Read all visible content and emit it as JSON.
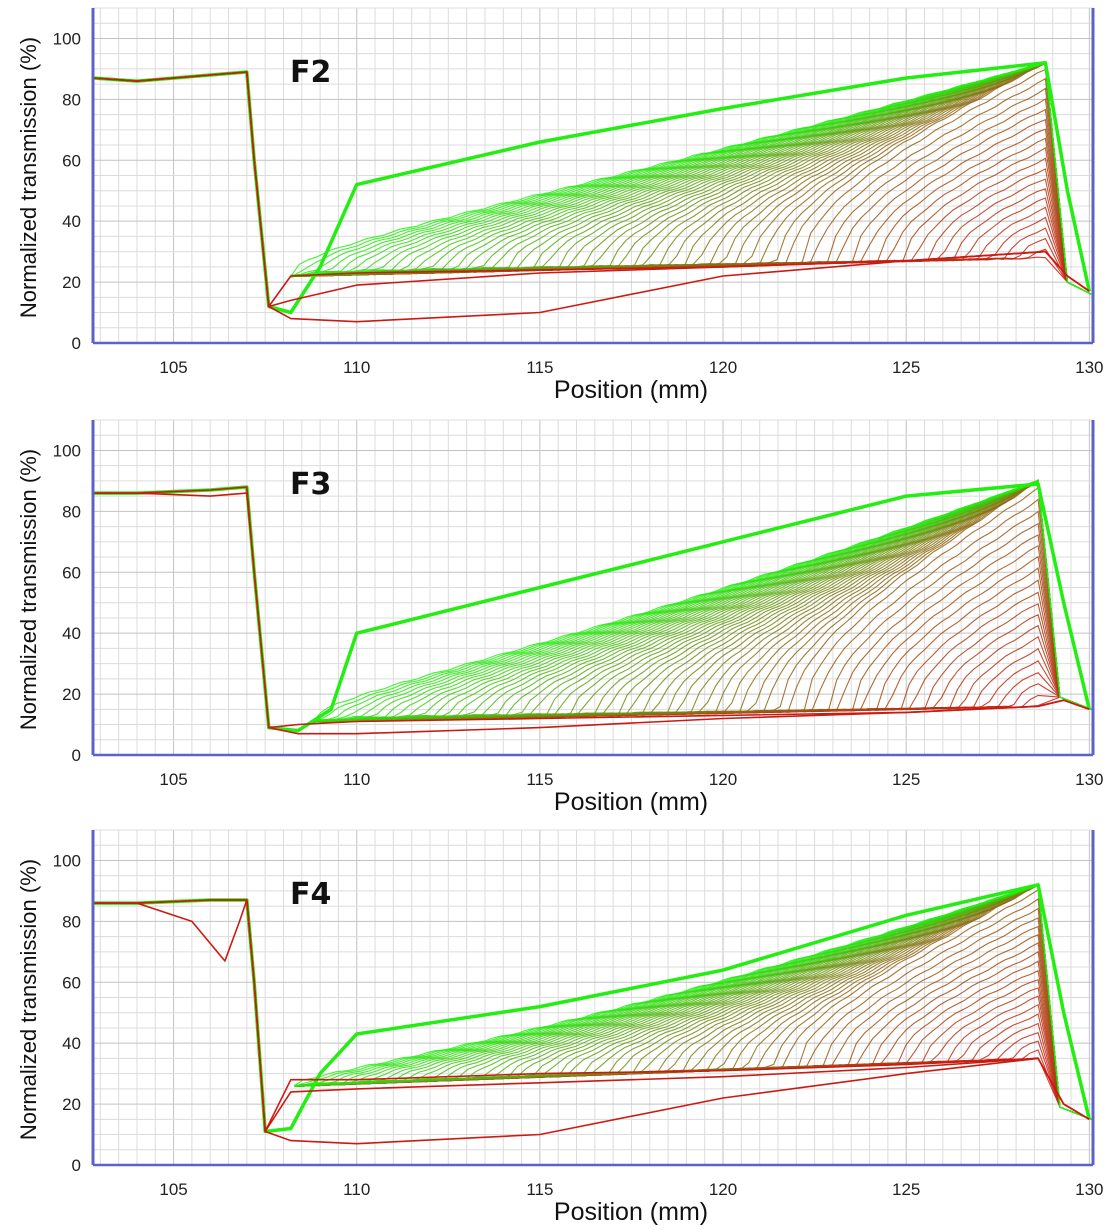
{
  "chart_data": [
    {
      "type": "line",
      "title": "F2",
      "xlabel": "Position (mm)",
      "ylabel": "Normalized transmission (%)",
      "xlim": [
        102.8,
        130.1
      ],
      "ylim": [
        0,
        110
      ],
      "xticks": [
        105,
        110,
        115,
        120,
        125,
        130
      ],
      "yticks": [
        0,
        20,
        40,
        60,
        80,
        100
      ],
      "grid": true,
      "color_gradient": [
        "#cc1a12",
        "#22ee11"
      ],
      "series": [
        {
          "x": [
            102.8,
            104,
            106,
            107.0,
            107.2,
            107.6,
            108.2,
            109,
            110,
            115,
            120,
            125,
            128.8,
            129.4,
            130
          ],
          "values": [
            87,
            86,
            88,
            89,
            60,
            12,
            10,
            25,
            52,
            66,
            77,
            87,
            92,
            50,
            17
          ]
        },
        {
          "x": [
            102.8,
            104,
            106,
            107.0,
            107.2,
            107.6,
            108.2,
            110,
            115,
            120,
            125,
            128.8,
            129.4,
            130
          ],
          "values": [
            87,
            86,
            88,
            89,
            60,
            12,
            22,
            23,
            24,
            25,
            27,
            30,
            22,
            17
          ]
        },
        {
          "x": [
            102.8,
            104,
            106,
            107.0,
            107.2,
            107.6,
            108.2,
            110,
            115,
            120,
            125,
            128.8,
            129.4,
            130
          ],
          "values": [
            87,
            86,
            88,
            89,
            60,
            12,
            14,
            19,
            23,
            25,
            27,
            30,
            22,
            17
          ]
        },
        {
          "x": [
            102.8,
            104,
            106,
            107.0,
            107.2,
            107.6,
            108.2,
            110,
            115,
            120,
            125,
            128.8,
            129.4,
            130
          ],
          "values": [
            87,
            86,
            88,
            89,
            60,
            12,
            8,
            7,
            10,
            22,
            27,
            30,
            22,
            17
          ]
        }
      ],
      "family": {
        "curves": 60,
        "plateau_start": 108.2,
        "plateau_end": 128.8,
        "bottom_left": 22,
        "bottom_right": 28,
        "top_left": 55,
        "top_right": 92,
        "end_level": 16
      }
    },
    {
      "type": "line",
      "title": "F3",
      "xlabel": "Position (mm)",
      "ylabel": "Normalized transmission (%)",
      "xlim": [
        102.8,
        130.1
      ],
      "ylim": [
        0,
        110
      ],
      "xticks": [
        105,
        110,
        115,
        120,
        125,
        130
      ],
      "yticks": [
        0,
        20,
        40,
        60,
        80,
        100
      ],
      "grid": true,
      "color_gradient": [
        "#cc1a12",
        "#22ee11"
      ],
      "series": [
        {
          "x": [
            102.8,
            104,
            106,
            107.0,
            107.2,
            107.6,
            108.4,
            109.3,
            110,
            115,
            120,
            125,
            128.6,
            129.3,
            130
          ],
          "values": [
            86,
            86,
            87,
            88,
            60,
            9,
            8,
            15,
            40,
            55,
            70,
            85,
            89,
            50,
            15
          ]
        },
        {
          "x": [
            102.8,
            104,
            106,
            107.0,
            107.2,
            107.6,
            108.4,
            110,
            115,
            120,
            125,
            128.6,
            129.3,
            130
          ],
          "values": [
            86,
            86,
            87,
            88,
            60,
            9,
            10,
            11,
            12,
            13,
            14,
            16,
            18,
            15
          ]
        },
        {
          "x": [
            102.8,
            104,
            106,
            107.0,
            107.2,
            107.6,
            108.4,
            110,
            115,
            120,
            125,
            128.6,
            129.3,
            130
          ],
          "values": [
            86,
            86,
            85,
            86,
            60,
            9,
            7,
            7,
            9,
            12,
            14,
            16,
            18,
            15
          ]
        }
      ],
      "family": {
        "curves": 60,
        "plateau_start": 108.8,
        "plateau_end": 128.6,
        "bottom_left": 11,
        "bottom_right": 16,
        "top_left": 40,
        "top_right": 90,
        "end_level": 15
      }
    },
    {
      "type": "line",
      "title": "F4",
      "xlabel": "Position (mm)",
      "ylabel": "Normalized transmission (%)",
      "xlim": [
        102.8,
        130.1
      ],
      "ylim": [
        0,
        110
      ],
      "xticks": [
        105,
        110,
        115,
        120,
        125,
        130
      ],
      "yticks": [
        0,
        20,
        40,
        60,
        80,
        100
      ],
      "grid": true,
      "color_gradient": [
        "#cc1a12",
        "#22ee11"
      ],
      "series": [
        {
          "x": [
            102.8,
            104,
            106,
            107.0,
            107.2,
            107.5,
            108.2,
            109,
            110,
            115,
            120,
            125,
            128.6,
            129.3,
            130
          ],
          "values": [
            86,
            86,
            87,
            87,
            60,
            11,
            12,
            30,
            43,
            52,
            64,
            82,
            92,
            50,
            15
          ]
        },
        {
          "x": [
            102.8,
            104,
            106,
            107.0,
            107.2,
            107.5,
            108.2,
            110,
            115,
            120,
            125,
            128.6,
            129.3,
            130
          ],
          "values": [
            86,
            86,
            87,
            87,
            60,
            11,
            28,
            28,
            30,
            31,
            33,
            35,
            20,
            15
          ]
        },
        {
          "x": [
            102.8,
            104,
            105.5,
            106.4,
            106.8,
            107.0,
            107.2,
            107.5,
            108.2,
            110,
            115,
            120,
            125,
            128.6,
            129.3,
            130
          ],
          "values": [
            86,
            86,
            80,
            67,
            80,
            87,
            60,
            11,
            24,
            25,
            27,
            29,
            32,
            35,
            20,
            15
          ]
        },
        {
          "x": [
            102.8,
            104,
            106,
            107.0,
            107.2,
            107.5,
            108.2,
            110,
            115,
            120,
            125,
            128.6,
            129.3,
            130
          ],
          "values": [
            86,
            86,
            87,
            87,
            60,
            11,
            8,
            7,
            10,
            22,
            30,
            35,
            20,
            15
          ]
        }
      ],
      "family": {
        "curves": 60,
        "plateau_start": 108.3,
        "plateau_end": 128.6,
        "bottom_left": 26,
        "bottom_right": 35,
        "top_left": 40,
        "top_right": 92,
        "end_level": 15
      }
    }
  ]
}
